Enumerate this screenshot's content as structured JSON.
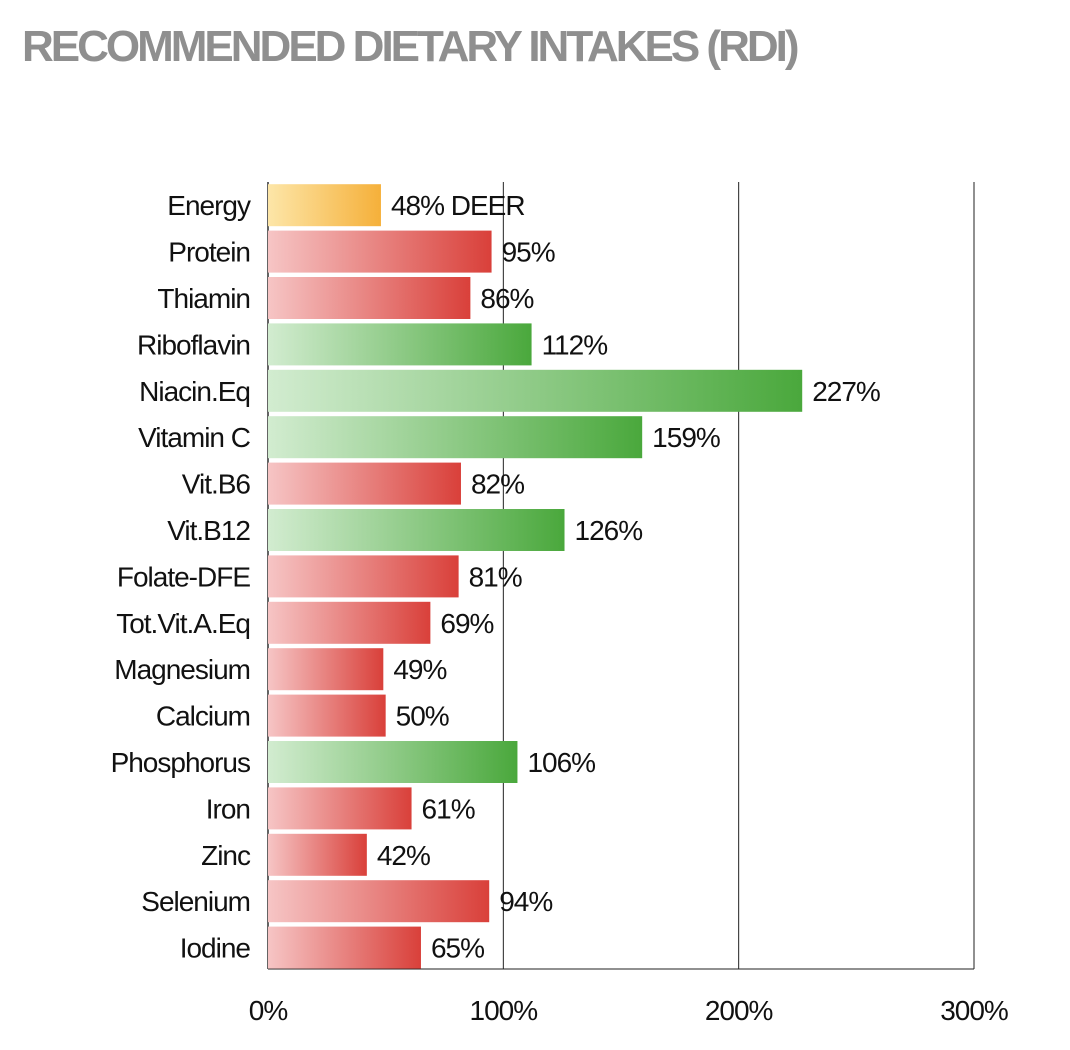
{
  "title": "RECOMMENDED DIETARY INTAKES (RDI)",
  "chart_data": {
    "type": "bar",
    "orientation": "horizontal",
    "title": "RECOMMENDED DIETARY INTAKES (RDI)",
    "xlabel": "",
    "ylabel": "",
    "xlim": [
      0,
      300
    ],
    "x_ticks": [
      "0%",
      "100%",
      "200%",
      "300%"
    ],
    "x_tick_values": [
      0,
      100,
      200,
      300
    ],
    "grid": true,
    "legend": "none",
    "categories": [
      "Energy",
      "Protein",
      "Thiamin",
      "Riboflavin",
      "Niacin.Eq",
      "Vitamin C",
      "Vit.B6",
      "Vit.B12",
      "Folate-DFE",
      "Tot.Vit.A.Eq",
      "Magnesium",
      "Calcium",
      "Phosphorus",
      "Iron",
      "Zinc",
      "Selenium",
      "Iodine"
    ],
    "values": [
      48,
      95,
      86,
      112,
      227,
      159,
      82,
      126,
      81,
      69,
      49,
      50,
      106,
      61,
      42,
      94,
      65
    ],
    "labels": [
      "48% DEER",
      "95%",
      "86%",
      "112%",
      "227%",
      "159%",
      "82%",
      "126%",
      "81%",
      "69%",
      "49%",
      "50%",
      "106%",
      "61%",
      "42%",
      "94%",
      "65%"
    ],
    "bar_status": [
      "energy",
      "below",
      "below",
      "above",
      "above",
      "above",
      "below",
      "above",
      "below",
      "below",
      "below",
      "below",
      "above",
      "below",
      "below",
      "below",
      "below"
    ],
    "colors": {
      "energy": [
        "#fde6a8",
        "#f5b03a"
      ],
      "below": [
        "#f6c5c5",
        "#d9403a"
      ],
      "above": [
        "#d2ecd0",
        "#4aa83c"
      ]
    }
  }
}
